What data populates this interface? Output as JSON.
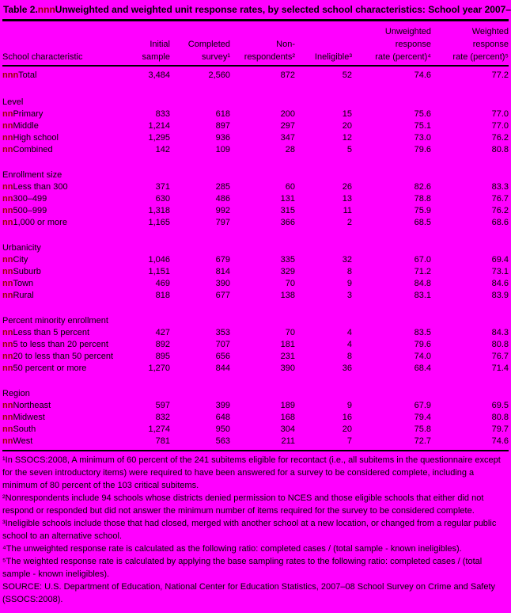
{
  "page": {
    "background_color": "#FF00FF",
    "marker_color": "#990000",
    "rule_color": "#000000"
  },
  "title": {
    "prefix": "Table 2.",
    "marker": "nnn",
    "text": "Unweighted and weighted unit response rates, by selected school characteristics: School year 2007–08"
  },
  "table": {
    "columns": [
      {
        "lines": [
          "",
          "",
          "School characteristic"
        ]
      },
      {
        "lines": [
          "",
          "Initial",
          "sample"
        ]
      },
      {
        "lines": [
          "",
          "Completed",
          "survey¹"
        ]
      },
      {
        "lines": [
          "",
          "Non-",
          "respondents²"
        ]
      },
      {
        "lines": [
          "",
          "",
          "Ineligible³"
        ]
      },
      {
        "lines": [
          "Unweighted",
          "response",
          "rate (percent)⁴"
        ]
      },
      {
        "lines": [
          "Weighted",
          "response",
          "rate (percent)⁵"
        ]
      }
    ],
    "total_row": {
      "marker": "nnn",
      "label": "Total",
      "values": [
        "3,484",
        "2,560",
        "872",
        "52",
        "74.6",
        "77.2"
      ]
    },
    "sections": [
      {
        "name": "Level",
        "rows": [
          {
            "marker": "nn",
            "label": "Primary",
            "values": [
              "833",
              "618",
              "200",
              "15",
              "75.6",
              "77.0"
            ]
          },
          {
            "marker": "nn",
            "label": "Middle",
            "values": [
              "1,214",
              "897",
              "297",
              "20",
              "75.1",
              "77.0"
            ]
          },
          {
            "marker": "nn",
            "label": "High school",
            "values": [
              "1,295",
              "936",
              "347",
              "12",
              "73.0",
              "76.2"
            ]
          },
          {
            "marker": "nn",
            "label": "Combined",
            "values": [
              "142",
              "109",
              "28",
              "5",
              "79.6",
              "80.8"
            ]
          }
        ]
      },
      {
        "name": "Enrollment size",
        "rows": [
          {
            "marker": "nn",
            "label": "Less than 300",
            "values": [
              "371",
              "285",
              "60",
              "26",
              "82.6",
              "83.3"
            ]
          },
          {
            "marker": "nn",
            "label": "300–499",
            "values": [
              "630",
              "486",
              "131",
              "13",
              "78.8",
              "76.7"
            ]
          },
          {
            "marker": "nn",
            "label": "500–999",
            "values": [
              "1,318",
              "992",
              "315",
              "11",
              "75.9",
              "76.2"
            ]
          },
          {
            "marker": "nn",
            "label": "1,000 or more",
            "values": [
              "1,165",
              "797",
              "366",
              "2",
              "68.5",
              "68.6"
            ]
          }
        ]
      },
      {
        "name": "Urbanicity",
        "rows": [
          {
            "marker": "nn",
            "label": "City",
            "values": [
              "1,046",
              "679",
              "335",
              "32",
              "67.0",
              "69.4"
            ]
          },
          {
            "marker": "nn",
            "label": "Suburb",
            "values": [
              "1,151",
              "814",
              "329",
              "8",
              "71.2",
              "73.1"
            ]
          },
          {
            "marker": "nn",
            "label": "Town",
            "values": [
              "469",
              "390",
              "70",
              "9",
              "84.8",
              "84.6"
            ]
          },
          {
            "marker": "nn",
            "label": "Rural",
            "values": [
              "818",
              "677",
              "138",
              "3",
              "83.1",
              "83.9"
            ]
          }
        ]
      },
      {
        "name": "Percent minority enrollment",
        "rows": [
          {
            "marker": "nn",
            "label": "Less than 5 percent",
            "values": [
              "427",
              "353",
              "70",
              "4",
              "83.5",
              "84.3"
            ]
          },
          {
            "marker": "nn",
            "label": "5 to less than 20 percent",
            "values": [
              "892",
              "707",
              "181",
              "4",
              "79.6",
              "80.8"
            ]
          },
          {
            "marker": "nn",
            "label": "20 to less than 50 percent",
            "values": [
              "895",
              "656",
              "231",
              "8",
              "74.0",
              "76.7"
            ]
          },
          {
            "marker": "nn",
            "label": "50 percent or more",
            "values": [
              "1,270",
              "844",
              "390",
              "36",
              "68.4",
              "71.4"
            ]
          }
        ]
      },
      {
        "name": "Region",
        "rows": [
          {
            "marker": "nn",
            "label": "Northeast",
            "values": [
              "597",
              "399",
              "189",
              "9",
              "67.9",
              "69.5"
            ]
          },
          {
            "marker": "nn",
            "label": "Midwest",
            "values": [
              "832",
              "648",
              "168",
              "16",
              "79.4",
              "80.8"
            ]
          },
          {
            "marker": "nn",
            "label": "South",
            "values": [
              "1,274",
              "950",
              "304",
              "20",
              "75.8",
              "79.7"
            ]
          },
          {
            "marker": "nn",
            "label": "West",
            "values": [
              "781",
              "563",
              "211",
              "7",
              "72.7",
              "74.6"
            ]
          }
        ]
      }
    ]
  },
  "footnotes": [
    "¹In SSOCS:2008, A minimum of 60 percent of the 241 subitems eligible for recontact (i.e., all subitems in the questionnaire except for the seven introductory items) were required to have been answered for a survey to be considered complete, including a minimum of 80 percent of the 103 critical subitems.",
    "²Nonrespondents include 94 schools whose districts denied permission to NCES and those eligible schools that either did not respond or responded but did not answer the minimum number of items required for the survey to be considered complete.",
    "³Ineligible schools include those that had closed, merged with another school at a new location, or changed from a regular public school to an alternative school.",
    "⁴The unweighted response rate is calculated as the following ratio: completed cases / (total sample - known ineligibles).",
    "⁵The weighted response rate is calculated by applying the base sampling rates to the following ratio: completed cases / (total sample - known ineligibles)."
  ],
  "source": "SOURCE: U.S. Department of Education, National Center for Education Statistics, 2007–08 School Survey on Crime and Safety (SSOCS:2008)."
}
